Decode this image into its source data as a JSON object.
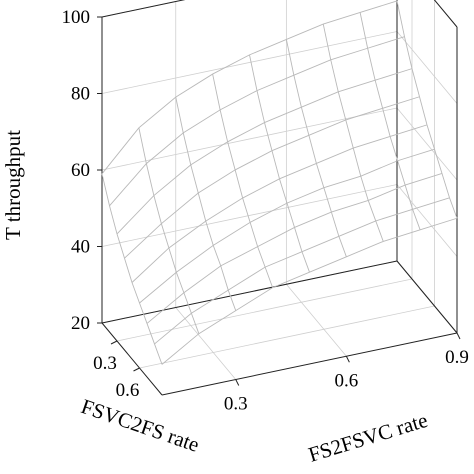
{
  "chart_data": {
    "type": "surface",
    "title": "",
    "xlabel": "FSVC2FS rate",
    "ylabel": "FS2FSVC rate",
    "zlabel": "T throughput",
    "xlim": [
      0.1,
      0.9
    ],
    "ylim": [
      0.1,
      0.9
    ],
    "zlim": [
      20,
      100
    ],
    "xticks": [
      0.3,
      0.6
    ],
    "yticks": [
      0.3,
      0.6,
      0.9
    ],
    "zticks": [
      20,
      40,
      60,
      80,
      100
    ],
    "grid": true,
    "x": [
      0.1,
      0.2,
      0.3,
      0.4,
      0.5,
      0.6,
      0.7,
      0.8,
      0.9
    ],
    "y": [
      0.1,
      0.2,
      0.3,
      0.4,
      0.5,
      0.6,
      0.7,
      0.8,
      0.9
    ],
    "z": [
      [
        59,
        69,
        75,
        79,
        82,
        84,
        86,
        87,
        88
      ],
      [
        53,
        62,
        68,
        72,
        75,
        77,
        79,
        80,
        81
      ],
      [
        48,
        56,
        62,
        66,
        69,
        71,
        73,
        74,
        75
      ],
      [
        44,
        51,
        57,
        61,
        64,
        66,
        68,
        69,
        70
      ],
      [
        40,
        47,
        52,
        56,
        59,
        61,
        63,
        64,
        65
      ],
      [
        37,
        43,
        48,
        52,
        55,
        57,
        58,
        60,
        61
      ],
      [
        34,
        40,
        45,
        48,
        51,
        53,
        54,
        56,
        57
      ],
      [
        31,
        37,
        41,
        45,
        47,
        49,
        51,
        52,
        53
      ],
      [
        28,
        34,
        38,
        42,
        44,
        46,
        48,
        49,
        50
      ]
    ]
  },
  "labels": {
    "zlabel": "T throughput",
    "xlabel": "FSVC2FS rate",
    "ylabel": "FS2FSVC rate"
  }
}
